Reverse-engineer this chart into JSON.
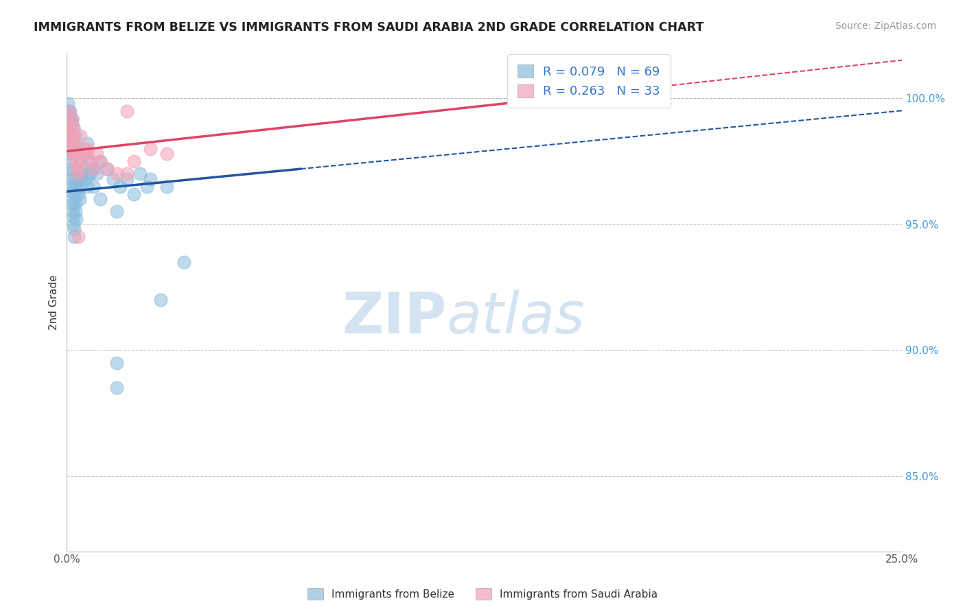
{
  "title": "IMMIGRANTS FROM BELIZE VS IMMIGRANTS FROM SAUDI ARABIA 2ND GRADE CORRELATION CHART",
  "source": "Source: ZipAtlas.com",
  "ylabel": "2nd Grade",
  "xlim": [
    0.0,
    25.0
  ],
  "ylim": [
    82.0,
    101.8
  ],
  "yticks": [
    85.0,
    90.0,
    95.0,
    100.0
  ],
  "ytick_labels": [
    "85.0%",
    "90.0%",
    "95.0%",
    "100.0%"
  ],
  "belize_R": 0.079,
  "belize_N": 69,
  "saudi_R": 0.263,
  "saudi_N": 33,
  "belize_color": "#8bbcdd",
  "saudi_color": "#f4a0b5",
  "belize_line_color": "#2255a0",
  "saudi_line_color": "#dd4466",
  "belize_line_x0": 0.0,
  "belize_line_y0": 96.3,
  "belize_line_x1": 7.0,
  "belize_line_y1": 97.2,
  "belize_line_solid_end": 7.0,
  "saudi_line_x0": 0.0,
  "saudi_line_y0": 97.9,
  "saudi_line_x1": 14.5,
  "saudi_line_y1": 100.0,
  "saudi_line_solid_end": 14.5,
  "belize_scatter_x": [
    0.04,
    0.05,
    0.06,
    0.07,
    0.07,
    0.08,
    0.08,
    0.09,
    0.1,
    0.1,
    0.11,
    0.12,
    0.12,
    0.13,
    0.14,
    0.15,
    0.15,
    0.16,
    0.17,
    0.18,
    0.19,
    0.2,
    0.2,
    0.21,
    0.22,
    0.24,
    0.25,
    0.26,
    0.27,
    0.28,
    0.3,
    0.32,
    0.35,
    0.38,
    0.4,
    0.42,
    0.45,
    0.5,
    0.55,
    0.6,
    0.65,
    0.7,
    0.8,
    0.9,
    1.0,
    1.2,
    1.4,
    1.5,
    1.5,
    1.6,
    1.8,
    2.2,
    2.4,
    2.8,
    3.5,
    0.15,
    0.2,
    0.25,
    0.3,
    0.4,
    0.5,
    0.6,
    0.7,
    0.8,
    1.0,
    1.5,
    2.0,
    2.5,
    3.0
  ],
  "belize_scatter_y": [
    99.8,
    99.5,
    99.3,
    99.1,
    98.8,
    98.5,
    98.2,
    98.0,
    97.8,
    99.5,
    97.5,
    97.2,
    97.0,
    96.8,
    96.5,
    96.3,
    99.0,
    96.0,
    95.8,
    95.5,
    95.3,
    95.0,
    98.5,
    94.8,
    94.5,
    96.5,
    96.2,
    95.8,
    95.5,
    95.2,
    96.8,
    96.5,
    96.2,
    96.0,
    96.5,
    96.8,
    97.0,
    97.2,
    96.8,
    96.5,
    97.0,
    97.5,
    97.2,
    97.0,
    97.5,
    97.2,
    96.8,
    88.5,
    89.5,
    96.5,
    96.8,
    97.0,
    96.5,
    92.0,
    93.5,
    99.2,
    98.8,
    98.5,
    98.0,
    97.5,
    97.8,
    98.2,
    97.0,
    96.5,
    96.0,
    95.5,
    96.2,
    96.8,
    96.5
  ],
  "saudi_scatter_x": [
    0.05,
    0.08,
    0.1,
    0.12,
    0.15,
    0.15,
    0.18,
    0.2,
    0.2,
    0.25,
    0.3,
    0.35,
    0.35,
    0.4,
    0.5,
    0.6,
    0.7,
    0.8,
    0.9,
    1.0,
    1.2,
    1.5,
    1.8,
    2.0,
    2.5,
    3.0,
    0.15,
    0.2,
    0.3,
    0.4,
    0.6,
    14.5,
    1.8
  ],
  "saudi_scatter_y": [
    99.5,
    99.0,
    98.8,
    98.5,
    98.2,
    99.2,
    98.0,
    97.8,
    98.8,
    97.5,
    97.2,
    97.0,
    94.5,
    98.5,
    98.0,
    97.8,
    97.5,
    97.2,
    97.8,
    97.5,
    97.2,
    97.0,
    99.5,
    97.5,
    98.0,
    97.8,
    98.5,
    98.2,
    97.8,
    97.5,
    98.0,
    100.0,
    97.0
  ],
  "watermark_zip": "ZIP",
  "watermark_atlas": "atlas",
  "background_color": "#ffffff",
  "grid_color": "#cccccc",
  "legend_label_belize": "Immigrants from Belize",
  "legend_label_saudi": "Immigrants from Saudi Arabia"
}
